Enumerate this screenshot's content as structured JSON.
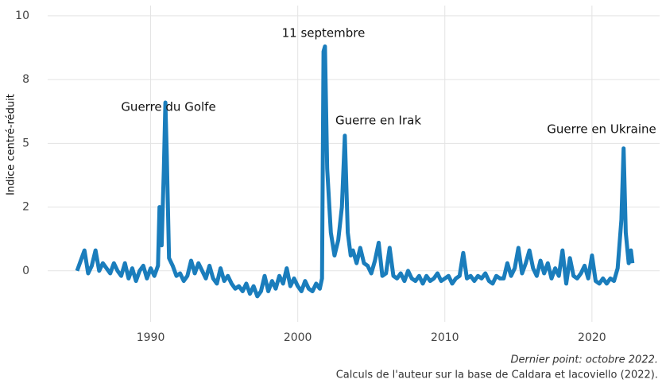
{
  "chart_data": {
    "type": "line",
    "y_label": "Indice centré-réduit",
    "annotations": [
      "Guerre du Golfe",
      "11 septembre",
      "Guerre en Irak",
      "Guerre en Ukraine"
    ],
    "captions": [
      "Dernier point: octobre 2022.",
      "Calculs de l'auteur sur la base de Caldara et Iacoviello (2022)."
    ],
    "color": "#1a7dbc",
    "grid": true,
    "xlim": [
      1983,
      2024.6
    ],
    "xticks": [
      1990,
      2000,
      2010,
      2020
    ],
    "ylim": [
      -2,
      10.4
    ],
    "yticks": [
      0,
      {
        "value": 2.5,
        "label": "2"
      },
      5,
      {
        "value": 7.5,
        "label": "8"
      },
      10
    ],
    "x": [
      1985.0,
      1985.25,
      1985.5,
      1985.75,
      1986.0,
      1986.25,
      1986.5,
      1986.75,
      1987.0,
      1987.25,
      1987.5,
      1987.75,
      1988.0,
      1988.25,
      1988.5,
      1988.75,
      1989.0,
      1989.25,
      1989.5,
      1989.75,
      1990.0,
      1990.25,
      1990.5,
      1990.6,
      1990.75,
      1990.9,
      1991.0,
      1991.1,
      1991.25,
      1991.5,
      1991.75,
      1992.0,
      1992.25,
      1992.5,
      1992.75,
      1993.0,
      1993.25,
      1993.5,
      1993.75,
      1994.0,
      1994.25,
      1994.5,
      1994.75,
      1995.0,
      1995.25,
      1995.5,
      1995.75,
      1996.0,
      1996.25,
      1996.5,
      1996.75,
      1997.0,
      1997.25,
      1997.5,
      1997.75,
      1998.0,
      1998.25,
      1998.5,
      1998.75,
      1999.0,
      1999.25,
      1999.5,
      1999.75,
      2000.0,
      2000.25,
      2000.5,
      2000.75,
      2001.0,
      2001.25,
      2001.5,
      2001.65,
      2001.75,
      2001.85,
      2002.0,
      2002.25,
      2002.5,
      2002.75,
      2003.0,
      2003.2,
      2003.4,
      2003.6,
      2003.75,
      2004.0,
      2004.25,
      2004.5,
      2004.75,
      2005.0,
      2005.25,
      2005.5,
      2005.75,
      2006.0,
      2006.25,
      2006.5,
      2006.75,
      2007.0,
      2007.25,
      2007.5,
      2007.75,
      2008.0,
      2008.25,
      2008.5,
      2008.75,
      2009.0,
      2009.25,
      2009.5,
      2009.75,
      2010.0,
      2010.25,
      2010.5,
      2010.75,
      2011.0,
      2011.25,
      2011.5,
      2011.75,
      2012.0,
      2012.25,
      2012.5,
      2012.75,
      2013.0,
      2013.25,
      2013.5,
      2013.75,
      2014.0,
      2014.25,
      2014.5,
      2014.75,
      2015.0,
      2015.25,
      2015.5,
      2015.75,
      2016.0,
      2016.25,
      2016.5,
      2016.75,
      2017.0,
      2017.25,
      2017.5,
      2017.75,
      2018.0,
      2018.25,
      2018.5,
      2018.75,
      2019.0,
      2019.25,
      2019.5,
      2019.75,
      2020.0,
      2020.25,
      2020.5,
      2020.75,
      2021.0,
      2021.25,
      2021.5,
      2021.75,
      2022.0,
      2022.15,
      2022.3,
      2022.5,
      2022.65,
      2022.75
    ],
    "values": [
      0.0,
      0.4,
      0.8,
      -0.1,
      0.2,
      0.8,
      0.0,
      0.3,
      0.1,
      -0.1,
      0.3,
      0.0,
      -0.2,
      0.3,
      -0.3,
      0.1,
      -0.4,
      0.0,
      0.2,
      -0.3,
      0.1,
      -0.2,
      0.2,
      2.5,
      1.0,
      4.0,
      6.6,
      4.5,
      0.5,
      0.2,
      -0.2,
      -0.1,
      -0.4,
      -0.2,
      0.4,
      -0.1,
      0.3,
      0.0,
      -0.3,
      0.2,
      -0.3,
      -0.5,
      0.1,
      -0.4,
      -0.2,
      -0.5,
      -0.7,
      -0.6,
      -0.8,
      -0.5,
      -0.9,
      -0.6,
      -1.0,
      -0.8,
      -0.2,
      -0.8,
      -0.4,
      -0.7,
      -0.2,
      -0.5,
      0.1,
      -0.6,
      -0.3,
      -0.6,
      -0.8,
      -0.4,
      -0.7,
      -0.8,
      -0.5,
      -0.7,
      -0.3,
      8.6,
      8.8,
      4.0,
      1.5,
      0.6,
      1.2,
      2.5,
      5.3,
      1.5,
      0.6,
      0.8,
      0.3,
      0.9,
      0.3,
      0.2,
      -0.1,
      0.4,
      1.1,
      -0.2,
      -0.1,
      0.9,
      -0.2,
      -0.3,
      -0.1,
      -0.4,
      0.0,
      -0.3,
      -0.4,
      -0.2,
      -0.5,
      -0.2,
      -0.4,
      -0.3,
      -0.1,
      -0.4,
      -0.3,
      -0.2,
      -0.5,
      -0.3,
      -0.2,
      0.7,
      -0.3,
      -0.2,
      -0.4,
      -0.2,
      -0.3,
      -0.1,
      -0.4,
      -0.5,
      -0.2,
      -0.3,
      -0.3,
      0.3,
      -0.2,
      0.1,
      0.9,
      -0.1,
      0.3,
      0.8,
      0.1,
      -0.2,
      0.4,
      -0.1,
      0.3,
      -0.3,
      0.1,
      -0.2,
      0.8,
      -0.5,
      0.5,
      -0.2,
      -0.3,
      -0.1,
      0.2,
      -0.3,
      0.6,
      -0.4,
      -0.5,
      -0.3,
      -0.5,
      -0.3,
      -0.4,
      0.1,
      2.0,
      4.8,
      1.5,
      0.3,
      0.8,
      0.3
    ]
  }
}
